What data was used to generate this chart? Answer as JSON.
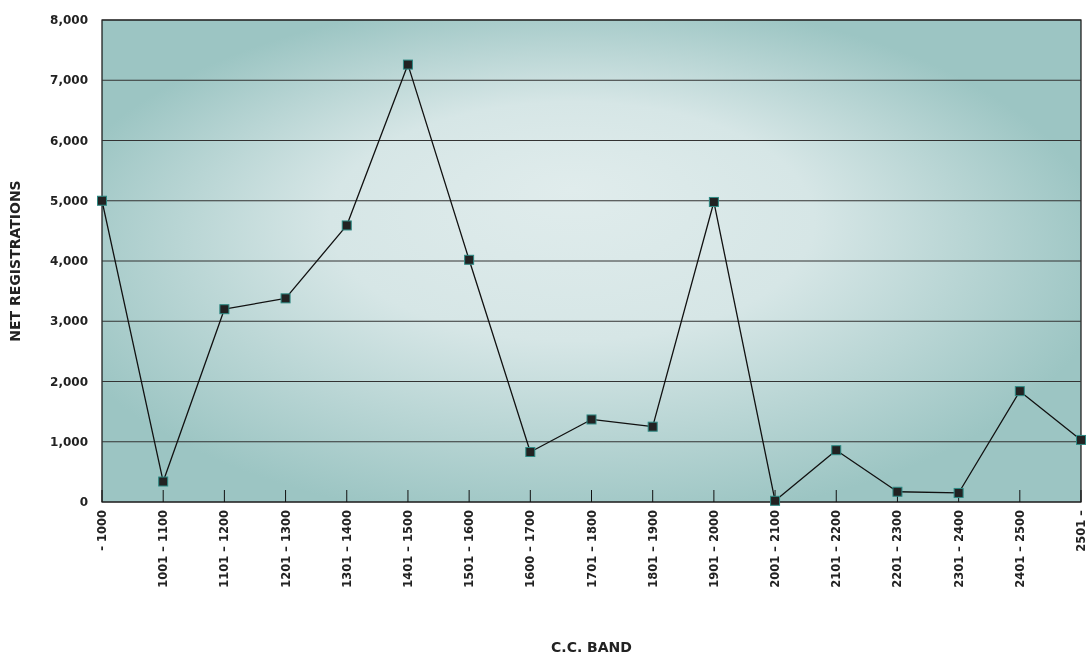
{
  "chart_data": {
    "type": "line",
    "xlabel": "C.C. BAND",
    "ylabel": "NET REGISTRATIONS",
    "categories": [
      "- 1000",
      "1001 – 1100",
      "1101 – 1200",
      "1201 – 1300",
      "1301 – 1400",
      "1401 – 1500",
      "1501 – 1600",
      "1600 – 1700",
      "1701 – 1800",
      "1801 – 1900",
      "1901 – 2000",
      "2001 – 2100",
      "2101 – 2200",
      "2201 – 2300",
      "2301 – 2400",
      "2401 – 2500",
      "2501 –"
    ],
    "series": [
      {
        "color": "#111111",
        "values": [
          5000,
          340,
          3200,
          3380,
          4590,
          7260,
          4020,
          830,
          1370,
          1250,
          4980,
          20,
          860,
          170,
          150,
          1840,
          1030
        ]
      }
    ],
    "ylim": [
      0,
      8000
    ],
    "yticks": [
      {
        "value": 0,
        "label": "0"
      },
      {
        "value": 1000,
        "label": "1,000"
      },
      {
        "value": 2000,
        "label": "2,000"
      },
      {
        "value": 3000,
        "label": "3,000"
      },
      {
        "value": 4000,
        "label": "4,000"
      },
      {
        "value": 5000,
        "label": "5,000"
      },
      {
        "value": 6000,
        "label": "6,000"
      },
      {
        "value": 7000,
        "label": "7,000"
      },
      {
        "value": 8000,
        "label": "8,000"
      }
    ],
    "grid": "y",
    "marker": "square",
    "line_style": "solid"
  }
}
